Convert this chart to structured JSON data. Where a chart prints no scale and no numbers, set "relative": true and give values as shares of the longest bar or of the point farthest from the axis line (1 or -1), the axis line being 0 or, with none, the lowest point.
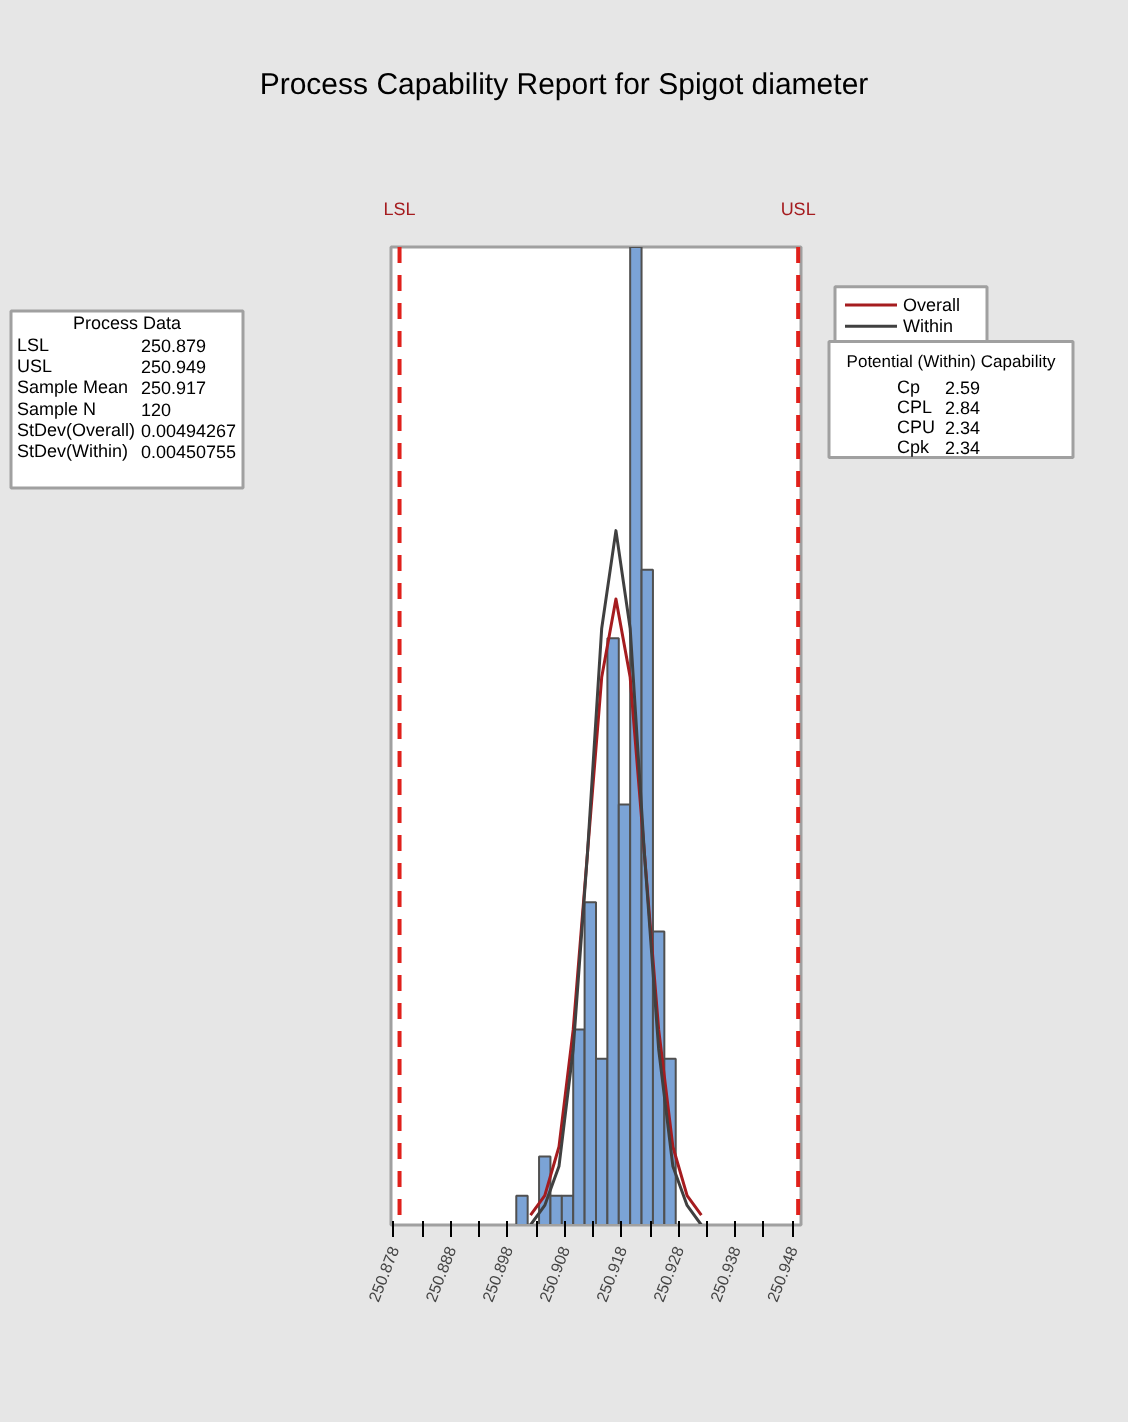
{
  "chart_data": {
    "type": "histogram",
    "title": "Process Capability Report for Spigot diameter",
    "relative": true,
    "tick_labels": "x",
    "grid": false,
    "legend": "right",
    "bins": [
      250.8995,
      250.9015,
      250.9035,
      250.9055,
      250.9075,
      250.9095,
      250.9115,
      250.9135,
      250.9155,
      250.9175,
      250.9195,
      250.9215,
      250.9235,
      250.9255,
      250.9275
    ],
    "values": [
      0.03,
      0,
      0.07,
      0.03,
      0.03,
      0.2,
      0.33,
      0.17,
      0.6,
      0.43,
      1,
      0.67,
      0.3,
      0.17
    ],
    "color": "#7ba3d6",
    "series": [
      {
        "type": "line",
        "name": "Overall",
        "color": "#a51c1f",
        "x": [
          250.902,
          250.9045,
          250.907,
          250.9095,
          250.912,
          250.9145,
          250.917,
          250.9195,
          250.922,
          250.9245,
          250.927,
          250.9295,
          250.932
        ],
        "values": [
          0.01,
          0.03,
          0.08,
          0.2,
          0.38,
          0.56,
          0.64,
          0.56,
          0.38,
          0.2,
          0.08,
          0.03,
          0.01
        ]
      },
      {
        "type": "line",
        "name": "Within",
        "color": "#404040",
        "x": [
          250.902,
          250.9045,
          250.907,
          250.9095,
          250.912,
          250.9145,
          250.917,
          250.9195,
          250.922,
          250.9245,
          250.927,
          250.9295,
          250.932
        ],
        "values": [
          0,
          0.02,
          0.06,
          0.18,
          0.38,
          0.61,
          0.71,
          0.61,
          0.38,
          0.18,
          0.06,
          0.02,
          0
        ]
      }
    ],
    "xlim": [
      250.8775,
      250.9495
    ],
    "xticks": [
      250.878,
      {
        "value": 250.883,
        "label": null
      },
      250.888,
      {
        "value": 250.893,
        "label": null
      },
      250.898,
      {
        "value": 250.903,
        "label": null
      },
      250.908,
      {
        "value": 250.913,
        "label": null
      },
      250.918,
      {
        "value": 250.923,
        "label": null
      },
      250.928,
      {
        "value": 250.933,
        "label": null
      },
      250.938,
      {
        "value": 250.943,
        "label": null
      },
      250.948
    ],
    "ref_lines": [
      {
        "axis": "x",
        "value": 250.879,
        "label": "LSL",
        "color": "#e0201b",
        "line_style": "dashed"
      },
      {
        "axis": "x",
        "value": 250.949,
        "label": "USL",
        "color": "#e0201b",
        "line_style": "dashed"
      }
    ],
    "annotations": [
      "Process Data",
      "LSL",
      "250.879",
      "USL",
      "250.949",
      "Sample Mean",
      "250.917",
      "Sample N",
      "120",
      "StDev(Overall)",
      "0.00494267",
      "StDev(Within)",
      "0.00450755",
      "Potential (Within) Capability",
      "Cp",
      "2.59",
      "CPL",
      "2.84",
      "CPU",
      "2.34",
      "Cpk",
      "2.34"
    ]
  }
}
